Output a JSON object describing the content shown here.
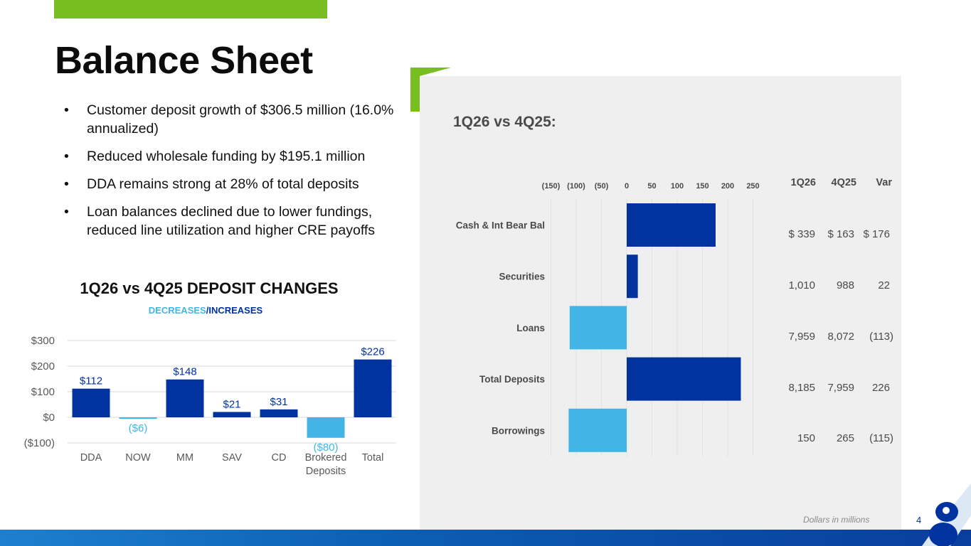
{
  "title": "Balance Sheet",
  "bullets": [
    "Customer deposit growth of $306.5 million (16.0% annualized)",
    "Reduced wholesale funding by $195.1 million",
    "DDA remains strong at 28% of total deposits",
    "Loan balances declined due to lower fundings, reduced line utilization and higher CRE payoffs"
  ],
  "colors": {
    "increase": "#0033a0",
    "decrease": "#41b6e6",
    "accent": "#78be20",
    "panel": "#efefef"
  },
  "deposit_chart": {
    "title": "1Q26 vs 4Q25 DEPOSIT CHANGES",
    "subtitle_decreases": "DECREASES",
    "subtitle_sep": "/",
    "subtitle_increases": "INCREASES"
  },
  "balance_panel": {
    "title": "1Q26 vs 4Q25:",
    "table_headers": [
      "1Q26",
      "4Q25",
      "Var"
    ],
    "table_rows": [
      {
        "c1": "$ 339",
        "c2": "$ 163",
        "c3": "$ 176"
      },
      {
        "c1": "1,010",
        "c2": "988",
        "c3": "22"
      },
      {
        "c1": "7,959",
        "c2": "8,072",
        "c3": "(113)"
      },
      {
        "c1": "8,185",
        "c2": "7,959",
        "c3": "226"
      },
      {
        "c1": "150",
        "c2": "265",
        "c3": "(115)"
      }
    ]
  },
  "chart_data": [
    {
      "type": "bar",
      "title": "1Q26 vs 4Q25 DEPOSIT CHANGES",
      "categories": [
        "DDA",
        "NOW",
        "MM",
        "SAV",
        "CD",
        "Brokered Deposits",
        "Total"
      ],
      "values": [
        112,
        -6,
        148,
        21,
        31,
        -80,
        226
      ],
      "data_labels": [
        "$112",
        "($6)",
        "$148",
        "$21",
        "$31",
        "($80)",
        "$226"
      ],
      "yticks": [
        300,
        200,
        100,
        0,
        -100
      ],
      "ytick_labels": [
        "$300",
        "$200",
        "$100",
        "$0",
        "($100)"
      ],
      "ylim": [
        -100,
        300
      ],
      "xlabel": "",
      "ylabel": "",
      "grid": true
    },
    {
      "type": "bar",
      "orientation": "horizontal",
      "title": "1Q26 vs 4Q25:",
      "categories": [
        "Cash & Int Bear Bal",
        "Securities",
        "Loans",
        "Total Deposits",
        "Borrowings"
      ],
      "values": [
        176,
        22,
        -113,
        226,
        -115
      ],
      "xticks": [
        -150,
        -100,
        -50,
        0,
        50,
        100,
        150,
        200,
        250
      ],
      "xtick_labels": [
        "(150)",
        "(100)",
        "(50)",
        "0",
        "50",
        "100",
        "150",
        "200",
        "250"
      ],
      "xlim": [
        -150,
        250
      ],
      "grid": true
    }
  ],
  "footnote": "Dollars in millions",
  "page_number": "4"
}
